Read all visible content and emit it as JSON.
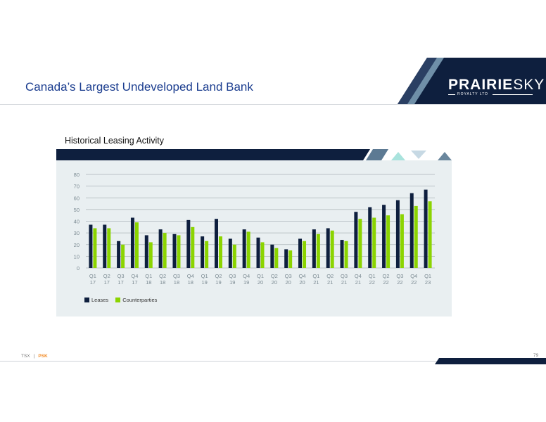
{
  "slide": {
    "title": "Canada’s Largest Undeveloped Land Bank",
    "page_number": "79"
  },
  "logo": {
    "name_bold": "PRAIRIE",
    "name_light": "SKY",
    "subtitle": "ROYALTY LTD"
  },
  "footer": {
    "exchange": "TSX",
    "separator": "|",
    "ticker": "PSK"
  },
  "colors": {
    "navy": "#0e1f3e",
    "lime": "#8bd400",
    "title_blue": "#1b3d8f",
    "accent_orange": "#f28c28",
    "panel": "#e9eff1"
  },
  "chart_data": {
    "type": "bar",
    "title": "Historical Leasing Activity",
    "xlabel": "",
    "ylabel": "",
    "ylim": [
      0,
      80
    ],
    "yticks": [
      0,
      10,
      20,
      30,
      40,
      50,
      60,
      70,
      80
    ],
    "grid": true,
    "legend_position": "bottom-left",
    "categories": [
      [
        "Q1",
        "17"
      ],
      [
        "Q2",
        "17"
      ],
      [
        "Q3",
        "17"
      ],
      [
        "Q4",
        "17"
      ],
      [
        "Q1",
        "18"
      ],
      [
        "Q2",
        "18"
      ],
      [
        "Q3",
        "18"
      ],
      [
        "Q4",
        "18"
      ],
      [
        "Q1",
        "19"
      ],
      [
        "Q2",
        "19"
      ],
      [
        "Q3",
        "19"
      ],
      [
        "Q4",
        "19"
      ],
      [
        "Q1",
        "20"
      ],
      [
        "Q2",
        "20"
      ],
      [
        "Q3",
        "20"
      ],
      [
        "Q4",
        "20"
      ],
      [
        "Q1",
        "21"
      ],
      [
        "Q2",
        "21"
      ],
      [
        "Q3",
        "21"
      ],
      [
        "Q4",
        "21"
      ],
      [
        "Q1",
        "22"
      ],
      [
        "Q2",
        "22"
      ],
      [
        "Q3",
        "22"
      ],
      [
        "Q4",
        "22"
      ],
      [
        "Q1",
        "23"
      ]
    ],
    "series": [
      {
        "name": "Leases",
        "color": "#0e1f3e",
        "values": [
          37,
          37,
          23,
          43,
          28,
          33,
          29,
          41,
          27,
          42,
          25,
          33,
          26,
          20,
          16,
          25,
          33,
          34,
          24,
          48,
          52,
          54,
          58,
          64,
          67
        ]
      },
      {
        "name": "Counterparties",
        "color": "#8bd400",
        "values": [
          34,
          34,
          20,
          39,
          22,
          30,
          28,
          35,
          23,
          27,
          20,
          31,
          22,
          17,
          15,
          23,
          29,
          32,
          23,
          42,
          43,
          45,
          46,
          53,
          57
        ]
      }
    ]
  }
}
